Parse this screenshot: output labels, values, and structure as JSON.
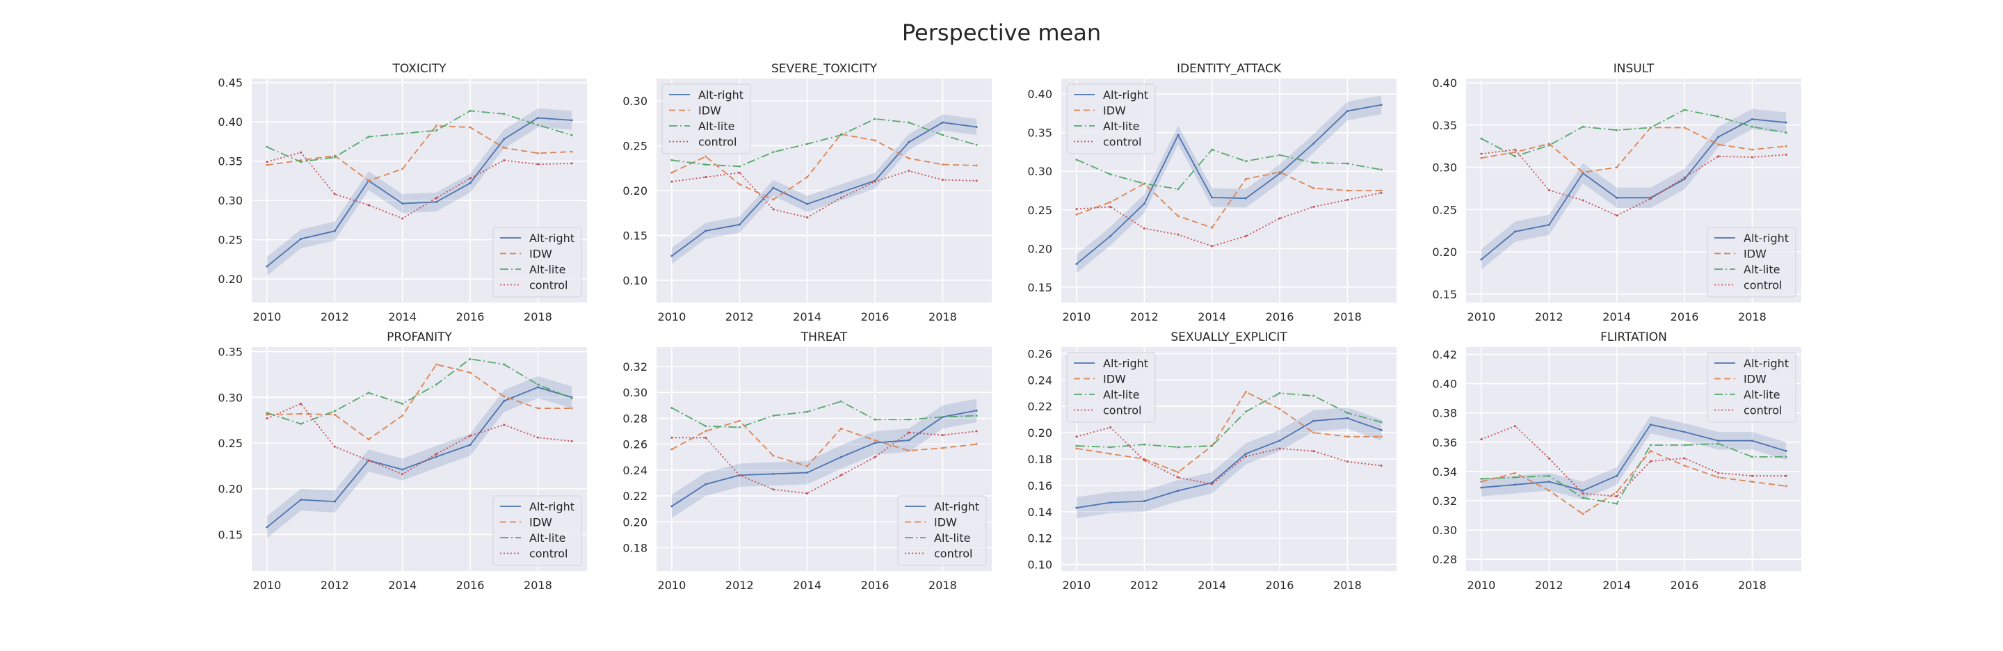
{
  "figure": {
    "title": "Perspective mean"
  },
  "colors": {
    "background": "#eaeaf2",
    "grid": "#ffffff",
    "text": "#262626",
    "Alt-right": "#4c72b0",
    "IDW": "#dd8452",
    "Alt-lite": "#55a868",
    "control": "#c44e52"
  },
  "chart_data": [
    {
      "type": "line",
      "title": "TOXICITY",
      "x": [
        2010,
        2011,
        2012,
        2013,
        2014,
        2015,
        2016,
        2017,
        2018,
        2019
      ],
      "xticks": [
        "2010",
        "2012",
        "2014",
        "2016",
        "2018"
      ],
      "yticks": [
        "0.20",
        "0.25",
        "0.30",
        "0.35",
        "0.40",
        "0.45"
      ],
      "ylim": [
        0.17,
        0.455
      ],
      "legend": "lower right",
      "series": [
        {
          "name": "Alt-right",
          "values": [
            0.216,
            0.251,
            0.261,
            0.325,
            0.296,
            0.298,
            0.322,
            0.378,
            0.405,
            0.402
          ],
          "band": 0.012
        },
        {
          "name": "IDW",
          "values": [
            0.345,
            0.351,
            0.357,
            0.325,
            0.34,
            0.395,
            0.393,
            0.367,
            0.36,
            0.362
          ]
        },
        {
          "name": "Alt-lite",
          "values": [
            0.368,
            0.349,
            0.355,
            0.381,
            0.385,
            0.389,
            0.414,
            0.41,
            0.396,
            0.383
          ]
        },
        {
          "name": "control",
          "values": [
            0.349,
            0.361,
            0.308,
            0.294,
            0.277,
            0.303,
            0.328,
            0.351,
            0.346,
            0.347
          ]
        }
      ]
    },
    {
      "type": "line",
      "title": "SEVERE_TOXICITY",
      "x": [
        2010,
        2011,
        2012,
        2013,
        2014,
        2015,
        2016,
        2017,
        2018,
        2019
      ],
      "xticks": [
        "2010",
        "2012",
        "2014",
        "2016",
        "2018"
      ],
      "yticks": [
        "0.10",
        "0.15",
        "0.20",
        "0.25",
        "0.30"
      ],
      "ylim": [
        0.075,
        0.325
      ],
      "legend": "upper left",
      "series": [
        {
          "name": "Alt-right",
          "values": [
            0.127,
            0.155,
            0.162,
            0.203,
            0.185,
            0.198,
            0.211,
            0.254,
            0.276,
            0.271
          ],
          "band": 0.009
        },
        {
          "name": "IDW",
          "values": [
            0.22,
            0.238,
            0.207,
            0.19,
            0.215,
            0.263,
            0.256,
            0.236,
            0.229,
            0.228
          ]
        },
        {
          "name": "Alt-lite",
          "values": [
            0.234,
            0.229,
            0.227,
            0.243,
            0.252,
            0.262,
            0.28,
            0.276,
            0.262,
            0.251
          ]
        },
        {
          "name": "control",
          "values": [
            0.21,
            0.215,
            0.22,
            0.179,
            0.17,
            0.192,
            0.21,
            0.222,
            0.212,
            0.211
          ]
        }
      ]
    },
    {
      "type": "line",
      "title": "IDENTITY_ATTACK",
      "x": [
        2010,
        2011,
        2012,
        2013,
        2014,
        2015,
        2016,
        2017,
        2018,
        2019
      ],
      "xticks": [
        "2010",
        "2012",
        "2014",
        "2016",
        "2018"
      ],
      "yticks": [
        "0.15",
        "0.20",
        "0.25",
        "0.30",
        "0.35",
        "0.40"
      ],
      "ylim": [
        0.13,
        0.42
      ],
      "legend": "upper left",
      "series": [
        {
          "name": "Alt-right",
          "values": [
            0.18,
            0.216,
            0.258,
            0.347,
            0.266,
            0.265,
            0.297,
            0.336,
            0.378,
            0.386
          ],
          "band": 0.012
        },
        {
          "name": "IDW",
          "values": [
            0.244,
            0.26,
            0.284,
            0.242,
            0.227,
            0.29,
            0.299,
            0.278,
            0.275,
            0.275
          ]
        },
        {
          "name": "Alt-lite",
          "values": [
            0.315,
            0.296,
            0.284,
            0.277,
            0.328,
            0.313,
            0.321,
            0.311,
            0.31,
            0.302
          ]
        },
        {
          "name": "control",
          "values": [
            0.251,
            0.254,
            0.226,
            0.218,
            0.203,
            0.216,
            0.239,
            0.254,
            0.263,
            0.272
          ]
        }
      ]
    },
    {
      "type": "line",
      "title": "INSULT",
      "x": [
        2010,
        2011,
        2012,
        2013,
        2014,
        2015,
        2016,
        2017,
        2018,
        2019
      ],
      "xticks": [
        "2010",
        "2012",
        "2014",
        "2016",
        "2018"
      ],
      "yticks": [
        "0.15",
        "0.20",
        "0.25",
        "0.30",
        "0.35",
        "0.40"
      ],
      "ylim": [
        0.14,
        0.405
      ],
      "legend": "lower right",
      "series": [
        {
          "name": "Alt-right",
          "values": [
            0.191,
            0.224,
            0.232,
            0.293,
            0.264,
            0.264,
            0.286,
            0.336,
            0.357,
            0.353
          ],
          "band": 0.012
        },
        {
          "name": "IDW",
          "values": [
            0.311,
            0.318,
            0.328,
            0.294,
            0.3,
            0.347,
            0.347,
            0.327,
            0.321,
            0.325
          ]
        },
        {
          "name": "Alt-lite",
          "values": [
            0.334,
            0.313,
            0.326,
            0.348,
            0.344,
            0.347,
            0.368,
            0.36,
            0.348,
            0.341
          ]
        },
        {
          "name": "control",
          "values": [
            0.316,
            0.321,
            0.273,
            0.261,
            0.243,
            0.263,
            0.288,
            0.313,
            0.312,
            0.315
          ]
        }
      ]
    },
    {
      "type": "line",
      "title": "PROFANITY",
      "x": [
        2010,
        2011,
        2012,
        2013,
        2014,
        2015,
        2016,
        2017,
        2018,
        2019
      ],
      "xticks": [
        "2010",
        "2012",
        "2014",
        "2016",
        "2018"
      ],
      "yticks": [
        "0.15",
        "0.20",
        "0.25",
        "0.30",
        "0.35"
      ],
      "ylim": [
        0.11,
        0.355
      ],
      "legend": "lower right",
      "series": [
        {
          "name": "Alt-right",
          "values": [
            0.158,
            0.188,
            0.186,
            0.231,
            0.221,
            0.235,
            0.248,
            0.296,
            0.311,
            0.3
          ],
          "band": 0.012
        },
        {
          "name": "IDW",
          "values": [
            0.281,
            0.282,
            0.281,
            0.254,
            0.28,
            0.336,
            0.327,
            0.301,
            0.288,
            0.288
          ]
        },
        {
          "name": "Alt-lite",
          "values": [
            0.283,
            0.271,
            0.285,
            0.305,
            0.293,
            0.314,
            0.342,
            0.336,
            0.314,
            0.299
          ]
        },
        {
          "name": "control",
          "values": [
            0.277,
            0.293,
            0.246,
            0.231,
            0.216,
            0.238,
            0.258,
            0.27,
            0.256,
            0.252
          ]
        }
      ]
    },
    {
      "type": "line",
      "title": "THREAT",
      "x": [
        2010,
        2011,
        2012,
        2013,
        2014,
        2015,
        2016,
        2017,
        2018,
        2019
      ],
      "xticks": [
        "2010",
        "2012",
        "2014",
        "2016",
        "2018"
      ],
      "yticks": [
        "0.18",
        "0.20",
        "0.22",
        "0.24",
        "0.26",
        "0.28",
        "0.30",
        "0.32"
      ],
      "ylim": [
        0.162,
        0.335
      ],
      "legend": "lower right",
      "series": [
        {
          "name": "Alt-right",
          "values": [
            0.212,
            0.229,
            0.236,
            0.237,
            0.238,
            0.25,
            0.261,
            0.263,
            0.281,
            0.286
          ],
          "band": 0.009
        },
        {
          "name": "IDW",
          "values": [
            0.256,
            0.27,
            0.278,
            0.251,
            0.243,
            0.272,
            0.263,
            0.255,
            0.257,
            0.26
          ]
        },
        {
          "name": "Alt-lite",
          "values": [
            0.288,
            0.274,
            0.273,
            0.282,
            0.285,
            0.293,
            0.279,
            0.279,
            0.281,
            0.282
          ]
        },
        {
          "name": "control",
          "values": [
            0.265,
            0.265,
            0.236,
            0.225,
            0.222,
            0.236,
            0.25,
            0.269,
            0.267,
            0.27
          ]
        }
      ]
    },
    {
      "type": "line",
      "title": "SEXUALLY_EXPLICIT",
      "x": [
        2010,
        2011,
        2012,
        2013,
        2014,
        2015,
        2016,
        2017,
        2018,
        2019
      ],
      "xticks": [
        "2010",
        "2012",
        "2014",
        "2016",
        "2018"
      ],
      "yticks": [
        "0.10",
        "0.12",
        "0.14",
        "0.16",
        "0.18",
        "0.20",
        "0.22",
        "0.24",
        "0.26"
      ],
      "ylim": [
        0.095,
        0.265
      ],
      "legend": "upper left",
      "series": [
        {
          "name": "Alt-right",
          "values": [
            0.143,
            0.147,
            0.148,
            0.156,
            0.162,
            0.184,
            0.194,
            0.209,
            0.211,
            0.202
          ],
          "band": 0.008
        },
        {
          "name": "IDW",
          "values": [
            0.188,
            0.184,
            0.18,
            0.17,
            0.19,
            0.231,
            0.218,
            0.2,
            0.197,
            0.197
          ]
        },
        {
          "name": "Alt-lite",
          "values": [
            0.19,
            0.189,
            0.191,
            0.189,
            0.19,
            0.216,
            0.23,
            0.228,
            0.215,
            0.208
          ]
        },
        {
          "name": "control",
          "values": [
            0.197,
            0.204,
            0.179,
            0.166,
            0.161,
            0.182,
            0.188,
            0.186,
            0.178,
            0.175
          ]
        }
      ]
    },
    {
      "type": "line",
      "title": "FLIRTATION",
      "x": [
        2010,
        2011,
        2012,
        2013,
        2014,
        2015,
        2016,
        2017,
        2018,
        2019
      ],
      "xticks": [
        "2010",
        "2012",
        "2014",
        "2016",
        "2018"
      ],
      "yticks": [
        "0.28",
        "0.30",
        "0.32",
        "0.34",
        "0.36",
        "0.38",
        "0.40",
        "0.42"
      ],
      "ylim": [
        0.272,
        0.425
      ],
      "legend": "upper right",
      "series": [
        {
          "name": "Alt-right",
          "values": [
            0.329,
            0.331,
            0.333,
            0.327,
            0.337,
            0.372,
            0.367,
            0.361,
            0.361,
            0.354
          ],
          "band": 0.006
        },
        {
          "name": "IDW",
          "values": [
            0.333,
            0.339,
            0.327,
            0.311,
            0.326,
            0.354,
            0.344,
            0.336,
            0.333,
            0.33
          ]
        },
        {
          "name": "Alt-lite",
          "values": [
            0.335,
            0.336,
            0.337,
            0.322,
            0.318,
            0.358,
            0.358,
            0.359,
            0.35,
            0.35
          ]
        },
        {
          "name": "control",
          "values": [
            0.362,
            0.371,
            0.349,
            0.325,
            0.323,
            0.347,
            0.349,
            0.339,
            0.337,
            0.337
          ]
        }
      ]
    }
  ]
}
